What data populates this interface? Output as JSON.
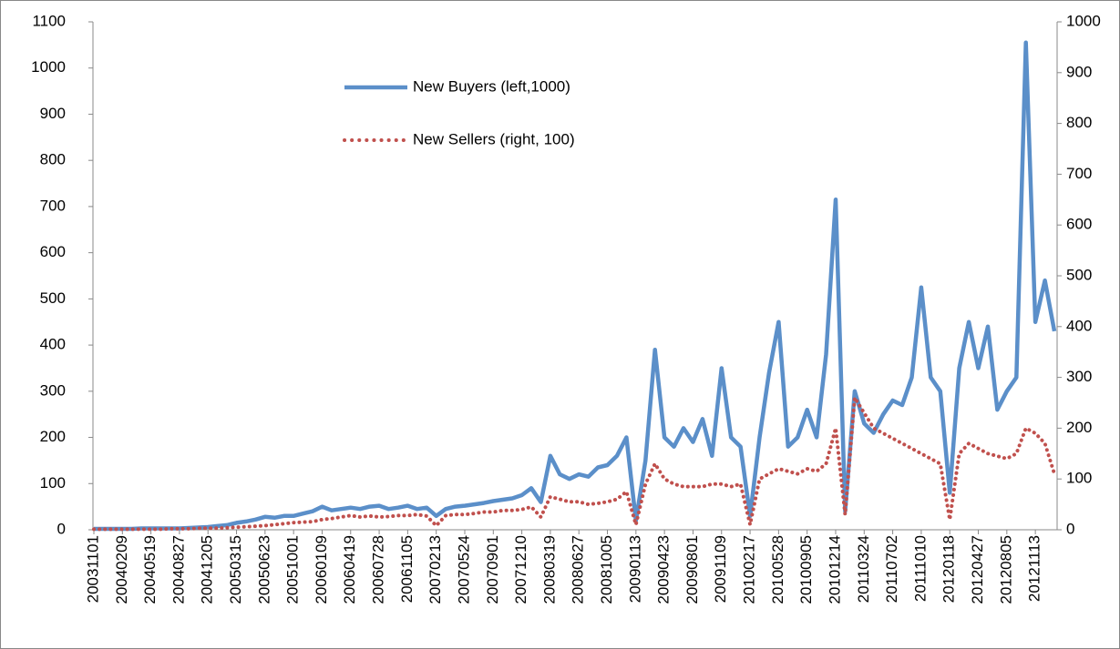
{
  "chart_data": {
    "type": "line",
    "categories": [
      "20031101",
      null,
      null,
      "20040209",
      null,
      null,
      "20040519",
      null,
      null,
      "20040827",
      null,
      null,
      "20041205",
      null,
      null,
      "20050315",
      null,
      null,
      "20050623",
      null,
      null,
      "20051001",
      null,
      null,
      "20060109",
      null,
      null,
      "20060419",
      null,
      null,
      "20060728",
      null,
      null,
      "20061105",
      null,
      null,
      "20070213",
      null,
      null,
      "20070524",
      null,
      null,
      "20070901",
      null,
      null,
      "20071210",
      null,
      null,
      "20080319",
      null,
      null,
      "20080627",
      null,
      null,
      "20081005",
      null,
      null,
      "20090113",
      null,
      null,
      "20090423",
      null,
      null,
      "20090801",
      null,
      null,
      "20091109",
      null,
      null,
      "20100217",
      null,
      null,
      "20100528",
      null,
      null,
      "20100905",
      null,
      null,
      "20101214",
      null,
      null,
      "20110324",
      null,
      null,
      "20110702",
      null,
      null,
      "20111010",
      null,
      null,
      "20120118",
      null,
      null,
      "20120427",
      null,
      null,
      "20120805",
      null,
      null,
      "20121113",
      null,
      null
    ],
    "series": [
      {
        "name": "New Buyers (left,1000)",
        "color": "#5b8fc9",
        "style": "solid",
        "values": [
          2,
          2,
          2,
          2,
          2,
          3,
          3,
          3,
          3,
          3,
          4,
          5,
          6,
          8,
          10,
          15,
          18,
          22,
          28,
          26,
          30,
          30,
          35,
          40,
          50,
          42,
          45,
          48,
          45,
          50,
          52,
          45,
          48,
          52,
          45,
          48,
          30,
          45,
          50,
          52,
          55,
          58,
          62,
          65,
          68,
          75,
          90,
          60,
          160,
          120,
          110,
          120,
          115,
          135,
          140,
          160,
          200,
          20,
          150,
          390,
          200,
          180,
          220,
          190,
          240,
          160,
          350,
          200,
          180,
          30,
          200,
          340,
          450,
          180,
          200,
          260,
          200,
          380,
          715,
          40,
          300,
          230,
          210,
          250,
          280,
          270,
          330,
          525,
          330,
          300,
          80,
          350,
          450,
          350,
          440,
          260,
          300,
          330,
          1055,
          450,
          540,
          430
        ]
      },
      {
        "name": "New Sellers (right, 100)",
        "color": "#c0504d",
        "style": "dotted",
        "axis": "y2",
        "values": [
          1,
          1,
          1,
          1,
          1,
          1,
          1,
          1,
          2,
          2,
          2,
          3,
          3,
          3,
          4,
          5,
          6,
          7,
          8,
          10,
          12,
          14,
          15,
          16,
          20,
          22,
          25,
          28,
          25,
          27,
          25,
          26,
          28,
          28,
          30,
          27,
          8,
          28,
          30,
          30,
          32,
          35,
          35,
          38,
          38,
          40,
          45,
          25,
          65,
          60,
          55,
          55,
          50,
          52,
          55,
          60,
          75,
          10,
          90,
          130,
          100,
          90,
          85,
          85,
          85,
          90,
          90,
          85,
          90,
          10,
          100,
          110,
          120,
          115,
          110,
          120,
          115,
          130,
          200,
          30,
          260,
          230,
          200,
          190,
          180,
          170,
          160,
          150,
          140,
          130,
          20,
          150,
          170,
          160,
          150,
          145,
          140,
          150,
          200,
          190,
          170,
          110
        ]
      }
    ],
    "ylim": [
      0,
      1100
    ],
    "yticks": [
      0,
      100,
      200,
      300,
      400,
      500,
      600,
      700,
      800,
      900,
      1000,
      1100
    ],
    "y2lim": [
      0,
      1000
    ],
    "y2ticks": [
      0,
      100,
      200,
      300,
      400,
      500,
      600,
      700,
      800,
      900,
      1000
    ]
  }
}
